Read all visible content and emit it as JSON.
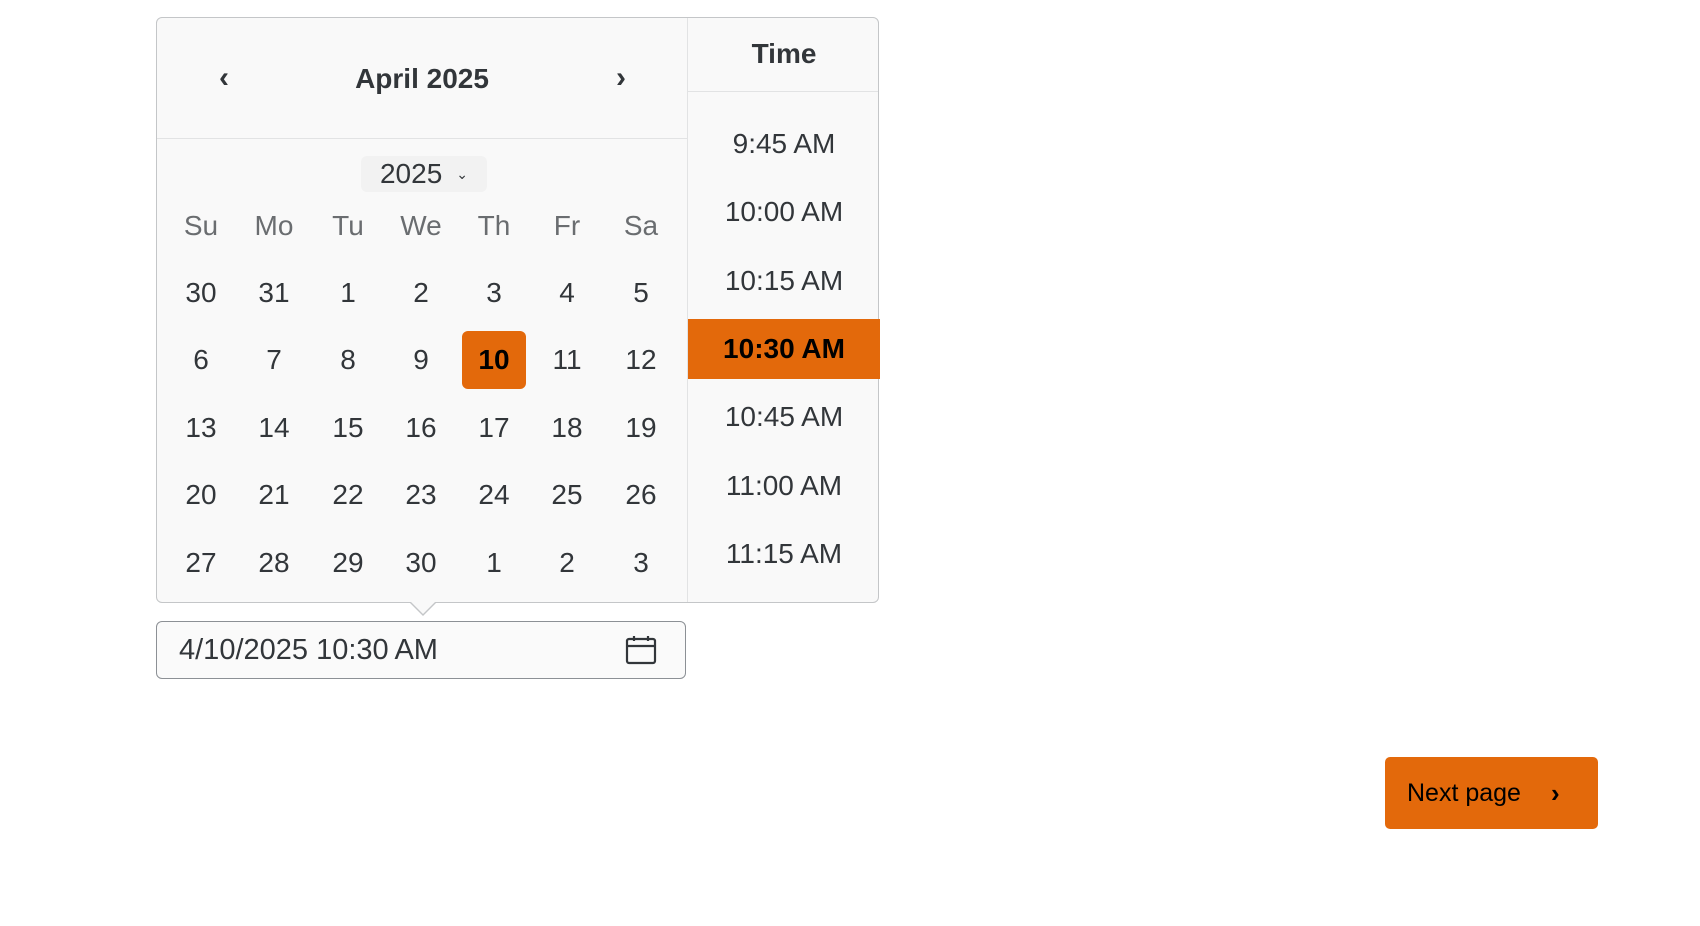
{
  "calendar": {
    "month_title": "April 2025",
    "year_select": "2025",
    "weekdays": [
      "Su",
      "Mo",
      "Tu",
      "We",
      "Th",
      "Fr",
      "Sa"
    ],
    "weeks": [
      [
        "30",
        "31",
        "1",
        "2",
        "3",
        "4",
        "5"
      ],
      [
        "6",
        "7",
        "8",
        "9",
        "10",
        "11",
        "12"
      ],
      [
        "13",
        "14",
        "15",
        "16",
        "17",
        "18",
        "19"
      ],
      [
        "20",
        "21",
        "22",
        "23",
        "24",
        "25",
        "26"
      ],
      [
        "27",
        "28",
        "29",
        "30",
        "1",
        "2",
        "3"
      ]
    ],
    "selected_day": "10"
  },
  "time": {
    "title": "Time",
    "items": [
      "9:45 AM",
      "10:00 AM",
      "10:15 AM",
      "10:30 AM",
      "10:45 AM",
      "11:00 AM",
      "11:15 AM"
    ],
    "selected": "10:30 AM"
  },
  "input": {
    "value": "4/10/2025 10:30 AM"
  },
  "next_button": {
    "label": "Next page"
  },
  "colors": {
    "accent": "#e3690b",
    "text": "#32363a",
    "popover_bg": "#f9f9f9"
  }
}
